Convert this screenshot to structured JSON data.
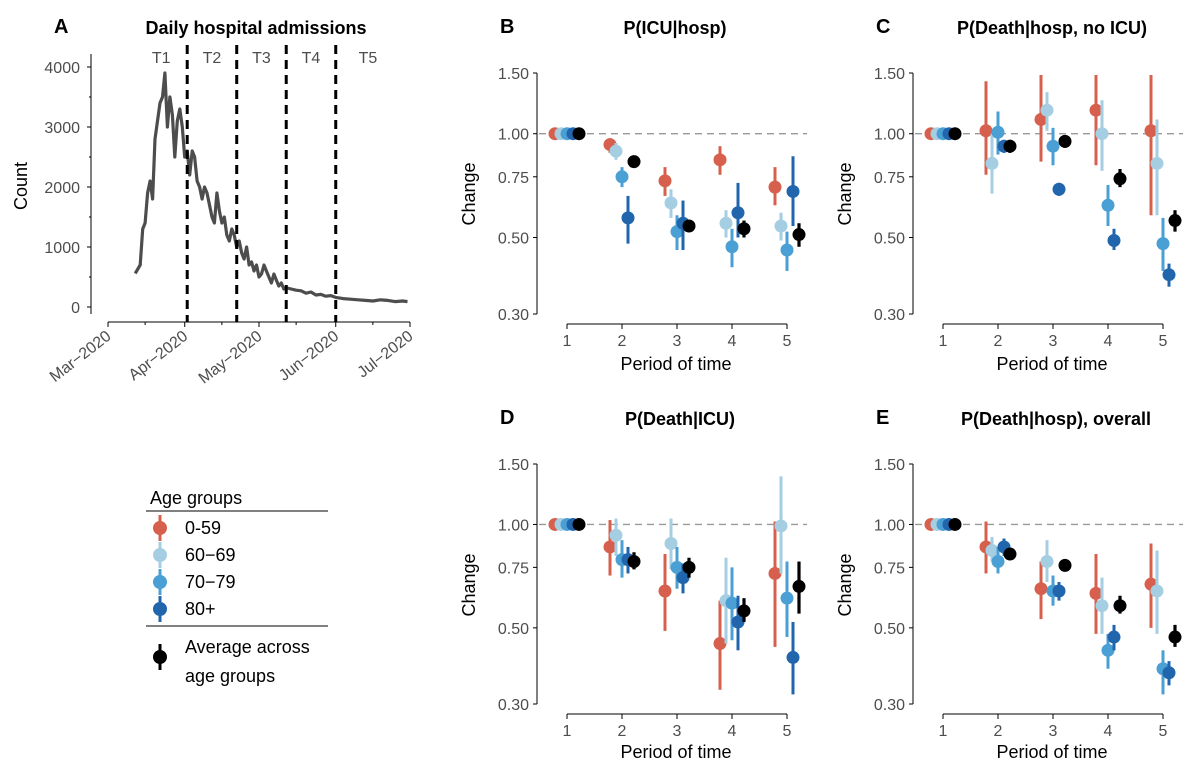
{
  "colors": {
    "0-59": "#d6604d",
    "60-69": "#a6cee3",
    "70-79": "#4a9fd4",
    "80+": "#2166ac",
    "avg": "#000000",
    "admissions_line": "#4d4d4d",
    "refline": "#999999"
  },
  "legend": {
    "title": "Age groups",
    "items": [
      "0-59",
      "60−69",
      "70−79",
      "80+"
    ],
    "avg_line1": "Average across",
    "avg_line2": "age groups"
  },
  "chart_data": [
    {
      "id": "A",
      "panel_label": "A",
      "type": "line",
      "title": "Daily hospital admissions",
      "xlabel": "",
      "ylabel": "Count",
      "x_ticks": [
        "Mar−2020",
        "Apr−2020",
        "May−2020",
        "Jun−2020",
        "Jul−2020"
      ],
      "y_ticks": [
        0,
        1000,
        2000,
        3000,
        4000
      ],
      "xlim_days": [
        0,
        122
      ],
      "ylim": [
        -250,
        4150
      ],
      "period_labels": [
        "T1",
        "T2",
        "T3",
        "T4",
        "T5"
      ],
      "period_boundaries": [
        "2020-04-02",
        "2020-04-22",
        "2020-05-12",
        "2020-06-01"
      ],
      "series": [
        {
          "x": [
            "2020-03-12",
            "2020-03-14",
            "2020-03-15",
            "2020-03-16",
            "2020-03-17",
            "2020-03-18",
            "2020-03-19",
            "2020-03-20",
            "2020-03-21",
            "2020-03-22",
            "2020-03-23",
            "2020-03-24",
            "2020-03-25",
            "2020-03-26",
            "2020-03-27",
            "2020-03-28",
            "2020-03-29",
            "2020-03-30",
            "2020-03-31",
            "2020-04-01",
            "2020-04-02",
            "2020-04-03",
            "2020-04-04",
            "2020-04-05",
            "2020-04-06",
            "2020-04-07",
            "2020-04-08",
            "2020-04-09",
            "2020-04-10",
            "2020-04-11",
            "2020-04-12",
            "2020-04-13",
            "2020-04-14",
            "2020-04-15",
            "2020-04-16",
            "2020-04-17",
            "2020-04-18",
            "2020-04-19",
            "2020-04-20",
            "2020-04-21",
            "2020-04-22",
            "2020-04-23",
            "2020-04-24",
            "2020-04-25",
            "2020-04-26",
            "2020-04-27",
            "2020-04-28",
            "2020-04-29",
            "2020-04-30",
            "2020-05-01",
            "2020-05-02",
            "2020-05-03",
            "2020-05-04",
            "2020-05-05",
            "2020-05-06",
            "2020-05-07",
            "2020-05-08",
            "2020-05-09",
            "2020-05-10",
            "2020-05-11",
            "2020-05-12",
            "2020-05-14",
            "2020-05-16",
            "2020-05-18",
            "2020-05-20",
            "2020-05-22",
            "2020-05-24",
            "2020-05-26",
            "2020-05-28",
            "2020-05-30",
            "2020-06-01",
            "2020-06-04",
            "2020-06-07",
            "2020-06-10",
            "2020-06-13",
            "2020-06-16",
            "2020-06-19",
            "2020-06-22",
            "2020-06-25",
            "2020-06-28",
            "2020-06-30"
          ],
          "values": [
            560,
            700,
            1300,
            1400,
            1900,
            2100,
            1800,
            2800,
            3100,
            3400,
            3500,
            3900,
            3000,
            3500,
            3200,
            2500,
            3100,
            3300,
            3000,
            2500,
            2600,
            2200,
            2600,
            2500,
            2100,
            2000,
            1800,
            2000,
            1900,
            1700,
            1500,
            1400,
            1900,
            1600,
            1400,
            1500,
            1200,
            1100,
            1300,
            1200,
            1000,
            1100,
            900,
            800,
            1000,
            700,
            750,
            600,
            700,
            500,
            550,
            700,
            600,
            500,
            400,
            550,
            450,
            350,
            400,
            300,
            320,
            300,
            280,
            270,
            230,
            250,
            200,
            210,
            180,
            190,
            160,
            140,
            130,
            120,
            110,
            100,
            120,
            110,
            90,
            100,
            90
          ]
        }
      ]
    },
    {
      "id": "B",
      "panel_label": "B",
      "type": "scatter",
      "title": "P(ICU|hosp)",
      "xlabel": "Period of time",
      "ylabel": "Change",
      "y_scale": "log",
      "ylim": [
        0.3,
        1.5
      ],
      "y_ticks": [
        "0.30",
        "0.50",
        "0.75",
        "1.00",
        "1.50"
      ],
      "categories": [
        "1",
        "2",
        "3",
        "4",
        "5"
      ],
      "series": [
        {
          "name": "0-59",
          "values": [
            1.0,
            0.93,
            0.73,
            0.84,
            0.7
          ],
          "lower": [
            1.0,
            0.88,
            0.66,
            0.76,
            0.62
          ],
          "upper": [
            1.0,
            0.97,
            0.8,
            0.92,
            0.8
          ]
        },
        {
          "name": "60-69",
          "values": [
            1.0,
            0.89,
            0.63,
            0.55,
            0.54
          ],
          "lower": [
            1.0,
            0.84,
            0.57,
            0.5,
            0.49
          ],
          "upper": [
            1.0,
            0.94,
            0.69,
            0.6,
            0.59
          ]
        },
        {
          "name": "70-79",
          "values": [
            1.0,
            0.75,
            0.52,
            0.47,
            0.46
          ],
          "lower": [
            1.0,
            0.7,
            0.46,
            0.41,
            0.4
          ],
          "upper": [
            1.0,
            0.8,
            0.58,
            0.53,
            0.52
          ]
        },
        {
          "name": "80+",
          "values": [
            1.0,
            0.57,
            0.55,
            0.59,
            0.68
          ],
          "lower": [
            1.0,
            0.48,
            0.46,
            0.5,
            0.54
          ],
          "upper": [
            1.0,
            0.66,
            0.64,
            0.72,
            0.86
          ]
        },
        {
          "name": "Average across age groups",
          "values": [
            1.0,
            0.83,
            0.54,
            0.53,
            0.51
          ],
          "lower": [
            1.0,
            0.81,
            0.52,
            0.5,
            0.47
          ],
          "upper": [
            1.0,
            0.85,
            0.56,
            0.56,
            0.55
          ]
        }
      ]
    },
    {
      "id": "C",
      "panel_label": "C",
      "type": "scatter",
      "title": "P(Death|hosp, no ICU)",
      "xlabel": "Period of time",
      "ylabel": "Change",
      "y_scale": "log",
      "ylim": [
        0.3,
        1.5
      ],
      "y_ticks": [
        "0.30",
        "0.50",
        "0.75",
        "1.00",
        "1.50"
      ],
      "categories": [
        "1",
        "2",
        "3",
        "4",
        "5"
      ],
      "series": [
        {
          "name": "0-59",
          "values": [
            1.0,
            1.02,
            1.1,
            1.17,
            1.02
          ],
          "lower": [
            1.0,
            0.76,
            0.83,
            0.81,
            0.58
          ],
          "upper": [
            1.0,
            1.42,
            1.48,
            1.48,
            1.48
          ]
        },
        {
          "name": "60-69",
          "values": [
            1.0,
            0.82,
            1.17,
            1.0,
            0.82
          ],
          "lower": [
            1.0,
            0.67,
            1.02,
            0.78,
            0.58
          ],
          "upper": [
            1.0,
            1.0,
            1.32,
            1.25,
            1.1
          ]
        },
        {
          "name": "70-79",
          "values": [
            1.0,
            1.01,
            0.92,
            0.62,
            0.48
          ],
          "lower": [
            1.0,
            0.87,
            0.81,
            0.54,
            0.4
          ],
          "upper": [
            1.0,
            1.16,
            1.04,
            0.71,
            0.57
          ]
        },
        {
          "name": "80+",
          "values": [
            1.0,
            0.92,
            0.69,
            0.49,
            0.39
          ],
          "lower": [
            1.0,
            0.88,
            0.66,
            0.46,
            0.36
          ],
          "upper": [
            1.0,
            0.96,
            0.72,
            0.53,
            0.42
          ]
        },
        {
          "name": "Average across age groups",
          "values": [
            1.0,
            0.92,
            0.95,
            0.74,
            0.56
          ],
          "lower": [
            1.0,
            0.88,
            0.91,
            0.7,
            0.52
          ],
          "upper": [
            1.0,
            0.96,
            0.99,
            0.79,
            0.6
          ]
        }
      ]
    },
    {
      "id": "D",
      "panel_label": "D",
      "type": "scatter",
      "title": "P(Death|ICU)",
      "xlabel": "Period of time",
      "ylabel": "Change",
      "y_scale": "log",
      "ylim": [
        0.3,
        1.5
      ],
      "y_ticks": [
        "0.30",
        "0.50",
        "0.75",
        "1.00",
        "1.50"
      ],
      "categories": [
        "1",
        "2",
        "3",
        "4",
        "5"
      ],
      "series": [
        {
          "name": "0-59",
          "values": [
            1.0,
            0.86,
            0.64,
            0.45,
            0.72
          ],
          "lower": [
            1.0,
            0.71,
            0.49,
            0.33,
            0.44
          ],
          "upper": [
            1.0,
            1.03,
            0.82,
            0.6,
            1.02
          ]
        },
        {
          "name": "60-69",
          "values": [
            1.0,
            0.93,
            0.88,
            0.6,
            0.99
          ],
          "lower": [
            1.0,
            0.81,
            0.74,
            0.45,
            0.72
          ],
          "upper": [
            1.0,
            1.04,
            1.04,
            0.8,
            1.38
          ]
        },
        {
          "name": "70-79",
          "values": [
            1.0,
            0.79,
            0.75,
            0.59,
            0.61
          ],
          "lower": [
            1.0,
            0.7,
            0.65,
            0.46,
            0.47
          ],
          "upper": [
            1.0,
            0.9,
            0.86,
            0.75,
            0.78
          ]
        },
        {
          "name": "80+",
          "values": [
            1.0,
            0.79,
            0.7,
            0.52,
            0.41
          ],
          "lower": [
            1.0,
            0.72,
            0.63,
            0.43,
            0.32
          ],
          "upper": [
            1.0,
            0.86,
            0.77,
            0.62,
            0.52
          ]
        },
        {
          "name": "Average across age groups",
          "values": [
            1.0,
            0.78,
            0.75,
            0.56,
            0.66
          ],
          "lower": [
            1.0,
            0.74,
            0.7,
            0.52,
            0.55
          ],
          "upper": [
            1.0,
            0.83,
            0.8,
            0.61,
            0.78
          ]
        }
      ]
    },
    {
      "id": "E",
      "panel_label": "E",
      "type": "scatter",
      "title": "P(Death|hosp), overall",
      "xlabel": "Period of time",
      "ylabel": "Change",
      "y_scale": "log",
      "ylim": [
        0.3,
        1.5
      ],
      "y_ticks": [
        "0.30",
        "0.50",
        "0.75",
        "1.00",
        "1.50"
      ],
      "categories": [
        "1",
        "2",
        "3",
        "4",
        "5"
      ],
      "series": [
        {
          "name": "0-59",
          "values": [
            1.0,
            0.86,
            0.65,
            0.63,
            0.67
          ],
          "lower": [
            1.0,
            0.72,
            0.53,
            0.48,
            0.5
          ],
          "upper": [
            1.0,
            1.02,
            0.78,
            0.82,
            0.88
          ]
        },
        {
          "name": "60-69",
          "values": [
            1.0,
            0.84,
            0.78,
            0.58,
            0.64
          ],
          "lower": [
            1.0,
            0.78,
            0.68,
            0.48,
            0.48
          ],
          "upper": [
            1.0,
            0.92,
            0.9,
            0.7,
            0.84
          ]
        },
        {
          "name": "70-79",
          "values": [
            1.0,
            0.78,
            0.64,
            0.43,
            0.38
          ],
          "lower": [
            1.0,
            0.72,
            0.58,
            0.38,
            0.32
          ],
          "upper": [
            1.0,
            0.86,
            0.71,
            0.48,
            0.43
          ]
        },
        {
          "name": "80+",
          "values": [
            1.0,
            0.86,
            0.64,
            0.47,
            0.37
          ],
          "lower": [
            1.0,
            0.81,
            0.6,
            0.43,
            0.34
          ],
          "upper": [
            1.0,
            0.91,
            0.68,
            0.51,
            0.4
          ]
        },
        {
          "name": "Average across age groups",
          "values": [
            1.0,
            0.82,
            0.76,
            0.58,
            0.47
          ],
          "lower": [
            1.0,
            0.79,
            0.73,
            0.55,
            0.44
          ],
          "upper": [
            1.0,
            0.85,
            0.79,
            0.62,
            0.51
          ]
        }
      ]
    }
  ]
}
